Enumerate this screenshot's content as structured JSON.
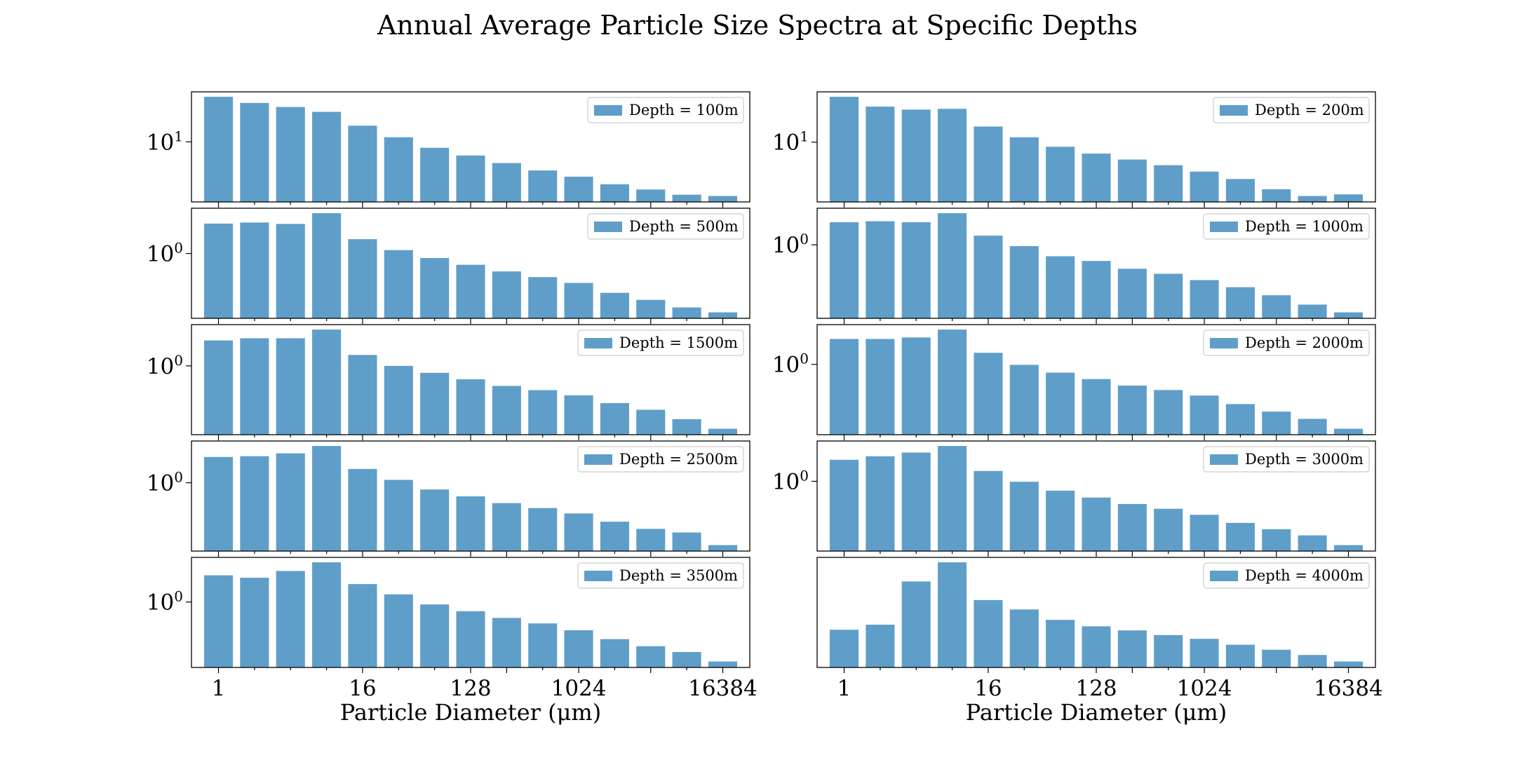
{
  "title": "Annual Average Particle Size Spectra at Specific Depths",
  "chart_data": [
    {
      "type": "bar",
      "legend_label": "Depth = 100m",
      "y_tick": {
        "base": "10",
        "exp": "1"
      },
      "log_y": true,
      "x": [
        1,
        2,
        4,
        8,
        16,
        32,
        64,
        128,
        256,
        512,
        1024,
        2048,
        4096,
        8192,
        16384
      ],
      "values": [
        60,
        47,
        40,
        33,
        19,
        12,
        7.9,
        5.8,
        4.3,
        3.2,
        2.5,
        1.85,
        1.5,
        1.22,
        1.16
      ],
      "xlabel": "",
      "x_ticks": []
    },
    {
      "type": "bar",
      "legend_label": "Depth = 200m",
      "y_tick": {
        "base": "10",
        "exp": "1"
      },
      "log_y": true,
      "x": [
        1,
        2,
        4,
        8,
        16,
        32,
        64,
        128,
        256,
        512,
        1024,
        2048,
        4096,
        8192,
        16384
      ],
      "values": [
        55,
        38,
        34,
        35,
        18,
        12,
        8.4,
        6.5,
        5.2,
        4.2,
        3.3,
        2.5,
        1.7,
        1.32,
        1.4
      ],
      "xlabel": "",
      "x_ticks": []
    },
    {
      "type": "bar",
      "legend_label": "Depth = 500m",
      "y_tick": {
        "base": "10",
        "exp": "0"
      },
      "log_y": true,
      "x": [
        1,
        2,
        4,
        8,
        16,
        32,
        64,
        128,
        256,
        512,
        1024,
        2048,
        4096,
        8192,
        16384
      ],
      "values": [
        3.4,
        3.55,
        3.35,
        5.2,
        1.8,
        1.15,
        0.83,
        0.63,
        0.48,
        0.38,
        0.3,
        0.2,
        0.15,
        0.11,
        0.09
      ],
      "xlabel": "",
      "x_ticks": []
    },
    {
      "type": "bar",
      "legend_label": "Depth = 1000m",
      "y_tick": {
        "base": "10",
        "exp": "0"
      },
      "log_y": true,
      "x": [
        1,
        2,
        4,
        8,
        16,
        32,
        64,
        128,
        256,
        512,
        1024,
        2048,
        4096,
        8192,
        16384
      ],
      "values": [
        2.5,
        2.6,
        2.5,
        3.6,
        1.45,
        0.95,
        0.63,
        0.52,
        0.38,
        0.31,
        0.24,
        0.18,
        0.13,
        0.089,
        0.065
      ],
      "xlabel": "",
      "x_ticks": []
    },
    {
      "type": "bar",
      "legend_label": "Depth = 1500m",
      "y_tick": {
        "base": "10",
        "exp": "0"
      },
      "log_y": true,
      "x": [
        1,
        2,
        4,
        8,
        16,
        32,
        64,
        128,
        256,
        512,
        1024,
        2048,
        4096,
        8192,
        16384
      ],
      "values": [
        3.0,
        3.3,
        3.3,
        4.8,
        1.6,
        1.0,
        0.74,
        0.56,
        0.42,
        0.35,
        0.28,
        0.2,
        0.15,
        0.1,
        0.066
      ],
      "xlabel": "",
      "x_ticks": []
    },
    {
      "type": "bar",
      "legend_label": "Depth = 2000m",
      "y_tick": {
        "base": "10",
        "exp": "0"
      },
      "log_y": true,
      "x": [
        1,
        2,
        4,
        8,
        16,
        32,
        64,
        128,
        256,
        512,
        1024,
        2048,
        4096,
        8192,
        16384
      ],
      "values": [
        3.0,
        3.0,
        3.2,
        4.5,
        1.65,
        0.98,
        0.7,
        0.53,
        0.4,
        0.33,
        0.26,
        0.18,
        0.13,
        0.095,
        0.062
      ],
      "xlabel": "",
      "x_ticks": []
    },
    {
      "type": "bar",
      "legend_label": "Depth = 2500m",
      "y_tick": {
        "base": "10",
        "exp": "0"
      },
      "log_y": true,
      "x": [
        1,
        2,
        4,
        8,
        16,
        32,
        64,
        128,
        256,
        512,
        1024,
        2048,
        4096,
        8192,
        16384
      ],
      "values": [
        3.0,
        3.1,
        3.5,
        4.8,
        1.8,
        1.13,
        0.75,
        0.56,
        0.42,
        0.34,
        0.27,
        0.19,
        0.14,
        0.12,
        0.07
      ],
      "xlabel": "",
      "x_ticks": []
    },
    {
      "type": "bar",
      "legend_label": "Depth = 3000m",
      "y_tick": {
        "base": "10",
        "exp": "0"
      },
      "log_y": true,
      "x": [
        1,
        2,
        4,
        8,
        16,
        32,
        64,
        128,
        256,
        512,
        1024,
        2048,
        4096,
        8192,
        16384
      ],
      "values": [
        2.5,
        2.9,
        3.4,
        4.5,
        1.55,
        0.98,
        0.67,
        0.5,
        0.38,
        0.31,
        0.24,
        0.17,
        0.13,
        0.1,
        0.066
      ],
      "xlabel": "",
      "x_ticks": []
    },
    {
      "type": "bar",
      "legend_label": "Depth = 3500m",
      "y_tick": {
        "base": "10",
        "exp": "0"
      },
      "log_y": true,
      "x": [
        1,
        2,
        4,
        8,
        16,
        32,
        64,
        128,
        256,
        512,
        1024,
        2048,
        4096,
        8192,
        16384
      ],
      "values": [
        2.5,
        2.3,
        2.9,
        3.9,
        1.85,
        1.3,
        0.92,
        0.73,
        0.58,
        0.48,
        0.38,
        0.28,
        0.22,
        0.18,
        0.13
      ],
      "xlabel": "Particle Diameter (μm)",
      "x_ticks": [
        {
          "value": 1,
          "label": "1"
        },
        {
          "value": 16,
          "label": "16"
        },
        {
          "value": 128,
          "label": "128"
        },
        {
          "value": 1024,
          "label": "1024"
        },
        {
          "value": 16384,
          "label": "16384"
        }
      ]
    },
    {
      "type": "bar",
      "legend_label": "Depth = 4000m",
      "y_tick": {
        "base": "10",
        "exp": "3"
      },
      "log_y": true,
      "x": [
        1,
        2,
        4,
        8,
        16,
        32,
        64,
        128,
        256,
        512,
        1024,
        2048,
        4096,
        8192,
        16384
      ],
      "values": [
        2800,
        2950,
        4600,
        5600,
        3800,
        3450,
        3100,
        2900,
        2780,
        2650,
        2550,
        2400,
        2280,
        2160,
        2020
      ],
      "xlabel": "Particle Diameter (μm)",
      "x_ticks": [
        {
          "value": 1,
          "label": "1"
        },
        {
          "value": 16,
          "label": "16"
        },
        {
          "value": 128,
          "label": "128"
        },
        {
          "value": 1024,
          "label": "1024"
        },
        {
          "value": 16384,
          "label": "16384"
        }
      ]
    }
  ]
}
